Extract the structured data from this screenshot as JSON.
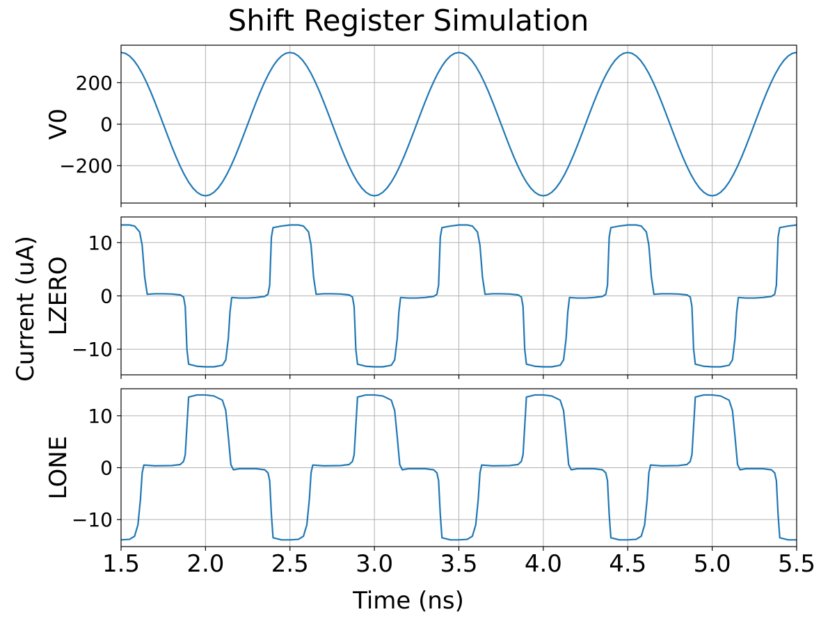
{
  "chart_data": {
    "type": "line",
    "title": "Shift Register Simulation",
    "xlabel": "Time (ns)",
    "shared_ylabel": "Current (uA)",
    "xlim": [
      1.5,
      5.5
    ],
    "xticks": [
      1.5,
      2.0,
      2.5,
      3.0,
      3.5,
      4.0,
      4.5,
      5.0,
      5.5
    ],
    "xtick_labels": [
      "1.5",
      "2.0",
      "2.5",
      "3.0",
      "3.5",
      "4.0",
      "4.5",
      "5.0",
      "5.5"
    ],
    "grid": true,
    "line_color": "#1f77b4",
    "subplots": [
      {
        "ylabel": "V0",
        "ylim": [
          -380,
          380
        ],
        "yticks": [
          200,
          0,
          -200
        ],
        "ytick_labels": [
          "200",
          "0",
          "−200"
        ],
        "waveform": "sine",
        "amplitude": 345,
        "period_ns": 1.0,
        "peak_at_ns": 1.5,
        "sample_step_ns": 0.025
      },
      {
        "ylabel": "LZERO",
        "ylim": [
          -14.8,
          14.8
        ],
        "yticks": [
          10,
          0,
          -10
        ],
        "ytick_labels": [
          "10",
          "0",
          "−10"
        ],
        "waveform": "points",
        "period_ns": 1.0,
        "points_one_period": [
          [
            1.5,
            13.3
          ],
          [
            1.55,
            13.3
          ],
          [
            1.58,
            13.1
          ],
          [
            1.61,
            12.0
          ],
          [
            1.625,
            9.5
          ],
          [
            1.64,
            3.5
          ],
          [
            1.655,
            0.3
          ],
          [
            1.7,
            0.4
          ],
          [
            1.75,
            0.4
          ],
          [
            1.8,
            0.35
          ],
          [
            1.85,
            0.2
          ],
          [
            1.87,
            -0.2
          ],
          [
            1.88,
            -2.0
          ],
          [
            1.89,
            -10.0
          ],
          [
            1.9,
            -12.8
          ],
          [
            1.95,
            -13.2
          ],
          [
            2.0,
            -13.3
          ],
          [
            2.05,
            -13.3
          ],
          [
            2.1,
            -13.0
          ],
          [
            2.12,
            -12.0
          ],
          [
            2.135,
            -8.0
          ],
          [
            2.145,
            -3.0
          ],
          [
            2.155,
            -0.3
          ],
          [
            2.2,
            -0.4
          ],
          [
            2.25,
            -0.4
          ],
          [
            2.3,
            -0.3
          ],
          [
            2.35,
            -0.1
          ],
          [
            2.37,
            0.3
          ],
          [
            2.38,
            2.0
          ],
          [
            2.39,
            11.0
          ],
          [
            2.4,
            12.8
          ],
          [
            2.45,
            13.1
          ],
          [
            2.5,
            13.3
          ]
        ]
      },
      {
        "ylabel": "LONE",
        "ylim": [
          -15.2,
          15.2
        ],
        "yticks": [
          10,
          0,
          -10
        ],
        "ytick_labels": [
          "10",
          "0",
          "−10"
        ],
        "waveform": "points",
        "period_ns": 1.0,
        "points_one_period": [
          [
            1.5,
            -13.9
          ],
          [
            1.55,
            -13.8
          ],
          [
            1.58,
            -13.2
          ],
          [
            1.6,
            -11.0
          ],
          [
            1.615,
            -6.0
          ],
          [
            1.625,
            -1.0
          ],
          [
            1.635,
            0.5
          ],
          [
            1.7,
            0.35
          ],
          [
            1.8,
            0.4
          ],
          [
            1.85,
            0.6
          ],
          [
            1.87,
            1.2
          ],
          [
            1.88,
            2.5
          ],
          [
            1.89,
            8.0
          ],
          [
            1.9,
            13.6
          ],
          [
            1.95,
            14.0
          ],
          [
            2.0,
            14.0
          ],
          [
            2.05,
            13.8
          ],
          [
            2.1,
            13.0
          ],
          [
            2.12,
            11.0
          ],
          [
            2.135,
            6.0
          ],
          [
            2.15,
            0.6
          ],
          [
            2.165,
            -0.4
          ],
          [
            2.2,
            -0.2
          ],
          [
            2.3,
            -0.2
          ],
          [
            2.35,
            -0.4
          ],
          [
            2.37,
            -1.0
          ],
          [
            2.38,
            -2.5
          ],
          [
            2.39,
            -9.0
          ],
          [
            2.4,
            -13.5
          ],
          [
            2.45,
            -13.9
          ],
          [
            2.5,
            -13.9
          ]
        ]
      }
    ]
  }
}
